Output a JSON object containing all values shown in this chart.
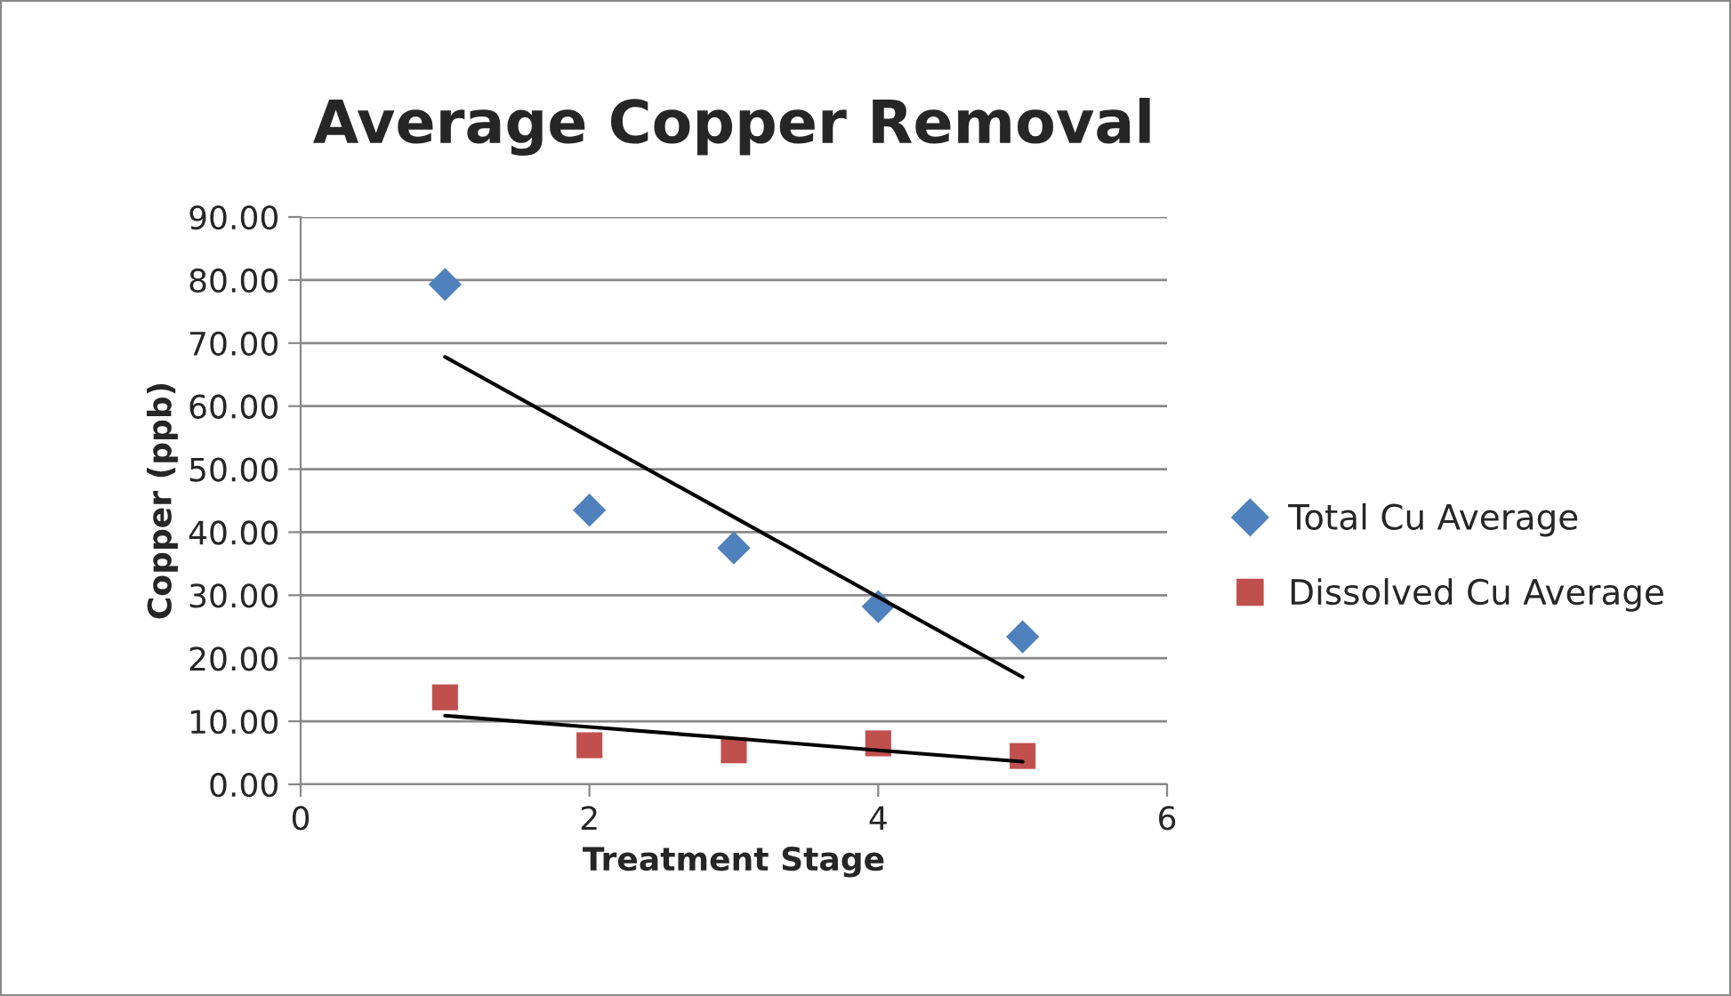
{
  "chart_data": {
    "type": "scatter",
    "title": "Average Copper Removal",
    "xlabel": "Treatment Stage",
    "ylabel": "Copper (ppb)",
    "x": [
      1,
      2,
      3,
      4,
      5
    ],
    "series": [
      {
        "name": "Total Cu Average",
        "color": "#4f81bd",
        "marker": "diamond",
        "values": [
          79.3,
          43.5,
          37.5,
          28.2,
          23.4
        ]
      },
      {
        "name": "Dissolved Cu Average",
        "color": "#c0504d",
        "marker": "square",
        "values": [
          13.8,
          6.2,
          5.4,
          6.5,
          4.5
        ]
      },
      {
        "type": "line",
        "color": "#000000",
        "values": [
          67.8,
          55.1,
          42.4,
          29.7,
          17.0
        ]
      },
      {
        "type": "line",
        "color": "#000000",
        "values": [
          10.9,
          9.1,
          7.3,
          5.4,
          3.6
        ]
      }
    ],
    "xlim": [
      0,
      6
    ],
    "xticks": [
      0,
      2,
      4,
      6
    ],
    "ylim": [
      0,
      90
    ],
    "yticks": [
      {
        "value": 0,
        "label": "0.00"
      },
      {
        "value": 10,
        "label": "10.00"
      },
      {
        "value": 20,
        "label": "20.00"
      },
      {
        "value": 30,
        "label": "30.00"
      },
      {
        "value": 40,
        "label": "40.00"
      },
      {
        "value": 50,
        "label": "50.00"
      },
      {
        "value": 60,
        "label": "60.00"
      },
      {
        "value": 70,
        "label": "70.00"
      },
      {
        "value": 80,
        "label": "80.00"
      },
      {
        "value": 90,
        "label": "90.00"
      }
    ],
    "grid": "y",
    "legend": "right"
  }
}
